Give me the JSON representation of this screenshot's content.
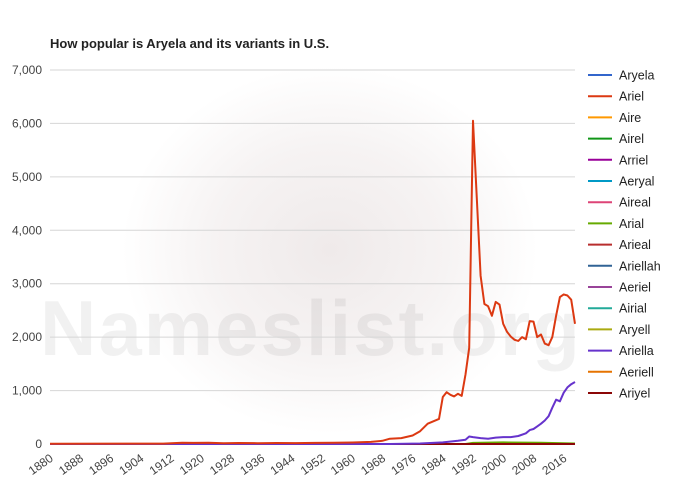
{
  "watermark": "Nameslist.org",
  "chart_data": {
    "type": "line",
    "title": "How popular is Aryela and its variants in U.S.",
    "xlabel": "",
    "ylabel": "",
    "xlim": [
      1880,
      2019
    ],
    "ylim": [
      0,
      7000
    ],
    "yticks": [
      0,
      1000,
      2000,
      3000,
      4000,
      5000,
      6000,
      7000
    ],
    "ytick_labels": [
      "0",
      "1,000",
      "2,000",
      "3,000",
      "4,000",
      "5,000",
      "6,000",
      "7,000"
    ],
    "xticks": [
      1880,
      1888,
      1896,
      1904,
      1912,
      1920,
      1928,
      1936,
      1944,
      1952,
      1960,
      1968,
      1976,
      1984,
      1992,
      2000,
      2008,
      2016
    ],
    "grid": true,
    "legend_position": "right",
    "series": [
      {
        "name": "Aryela",
        "color": "#3366cc",
        "points": [
          [
            1880,
            0
          ],
          [
            2019,
            0
          ]
        ]
      },
      {
        "name": "Ariel",
        "color": "#dc3912",
        "points": [
          [
            1880,
            5
          ],
          [
            1910,
            8
          ],
          [
            1915,
            25
          ],
          [
            1918,
            20
          ],
          [
            1922,
            22
          ],
          [
            1926,
            15
          ],
          [
            1930,
            18
          ],
          [
            1935,
            15
          ],
          [
            1940,
            18
          ],
          [
            1945,
            16
          ],
          [
            1950,
            20
          ],
          [
            1955,
            25
          ],
          [
            1960,
            28
          ],
          [
            1965,
            40
          ],
          [
            1968,
            60
          ],
          [
            1970,
            100
          ],
          [
            1973,
            110
          ],
          [
            1976,
            160
          ],
          [
            1978,
            240
          ],
          [
            1980,
            380
          ],
          [
            1983,
            470
          ],
          [
            1984,
            880
          ],
          [
            1985,
            970
          ],
          [
            1986,
            920
          ],
          [
            1987,
            890
          ],
          [
            1988,
            940
          ],
          [
            1989,
            900
          ],
          [
            1990,
            1300
          ],
          [
            1991,
            1800
          ],
          [
            1992,
            6050
          ],
          [
            1993,
            4600
          ],
          [
            1994,
            3150
          ],
          [
            1995,
            2620
          ],
          [
            1996,
            2580
          ],
          [
            1997,
            2400
          ],
          [
            1998,
            2660
          ],
          [
            1999,
            2610
          ],
          [
            2000,
            2250
          ],
          [
            2001,
            2100
          ],
          [
            2002,
            2010
          ],
          [
            2003,
            1950
          ],
          [
            2004,
            1930
          ],
          [
            2005,
            2000
          ],
          [
            2006,
            1960
          ],
          [
            2007,
            2300
          ],
          [
            2008,
            2290
          ],
          [
            2009,
            2000
          ],
          [
            2010,
            2050
          ],
          [
            2011,
            1880
          ],
          [
            2012,
            1850
          ],
          [
            2013,
            2000
          ],
          [
            2014,
            2400
          ],
          [
            2015,
            2750
          ],
          [
            2016,
            2800
          ],
          [
            2017,
            2780
          ],
          [
            2018,
            2700
          ],
          [
            2019,
            2250
          ]
        ]
      },
      {
        "name": "Aire",
        "color": "#ff9900",
        "points": [
          [
            1880,
            0
          ],
          [
            2019,
            0
          ]
        ]
      },
      {
        "name": "Airel",
        "color": "#109618",
        "points": [
          [
            1880,
            0
          ],
          [
            2019,
            0
          ]
        ]
      },
      {
        "name": "Arriel",
        "color": "#990099",
        "points": [
          [
            1880,
            0
          ],
          [
            2019,
            0
          ]
        ]
      },
      {
        "name": "Aeryal",
        "color": "#0099c6",
        "points": [
          [
            1880,
            0
          ],
          [
            2019,
            0
          ]
        ]
      },
      {
        "name": "Aireal",
        "color": "#dd4477",
        "points": [
          [
            1880,
            0
          ],
          [
            2019,
            0
          ]
        ]
      },
      {
        "name": "Arial",
        "color": "#66aa00",
        "points": [
          [
            1880,
            0
          ],
          [
            1990,
            0
          ],
          [
            1992,
            20
          ],
          [
            2000,
            30
          ],
          [
            2010,
            25
          ],
          [
            2019,
            10
          ]
        ]
      },
      {
        "name": "Arieal",
        "color": "#b82e2e",
        "points": [
          [
            1880,
            0
          ],
          [
            2019,
            0
          ]
        ]
      },
      {
        "name": "Ariellah",
        "color": "#316395",
        "points": [
          [
            1880,
            0
          ],
          [
            2019,
            0
          ]
        ]
      },
      {
        "name": "Aeriel",
        "color": "#994499",
        "points": [
          [
            1880,
            0
          ],
          [
            2019,
            0
          ]
        ]
      },
      {
        "name": "Airial",
        "color": "#22aa99",
        "points": [
          [
            1880,
            0
          ],
          [
            2019,
            0
          ]
        ]
      },
      {
        "name": "Aryell",
        "color": "#aaaa11",
        "points": [
          [
            1880,
            0
          ],
          [
            2019,
            0
          ]
        ]
      },
      {
        "name": "Ariella",
        "color": "#6633cc",
        "points": [
          [
            1880,
            0
          ],
          [
            1970,
            0
          ],
          [
            1978,
            10
          ],
          [
            1984,
            30
          ],
          [
            1988,
            60
          ],
          [
            1990,
            80
          ],
          [
            1991,
            140
          ],
          [
            1992,
            130
          ],
          [
            1994,
            110
          ],
          [
            1996,
            100
          ],
          [
            1998,
            120
          ],
          [
            2000,
            130
          ],
          [
            2002,
            130
          ],
          [
            2004,
            150
          ],
          [
            2006,
            200
          ],
          [
            2007,
            260
          ],
          [
            2008,
            280
          ],
          [
            2009,
            330
          ],
          [
            2010,
            380
          ],
          [
            2011,
            440
          ],
          [
            2012,
            520
          ],
          [
            2013,
            680
          ],
          [
            2014,
            830
          ],
          [
            2015,
            800
          ],
          [
            2016,
            960
          ],
          [
            2017,
            1060
          ],
          [
            2018,
            1120
          ],
          [
            2019,
            1160
          ]
        ]
      },
      {
        "name": "Aeriell",
        "color": "#e67300",
        "points": [
          [
            1880,
            0
          ],
          [
            2019,
            0
          ]
        ]
      },
      {
        "name": "Ariyel",
        "color": "#8b0707",
        "points": [
          [
            1880,
            0
          ],
          [
            2019,
            0
          ]
        ]
      }
    ]
  }
}
